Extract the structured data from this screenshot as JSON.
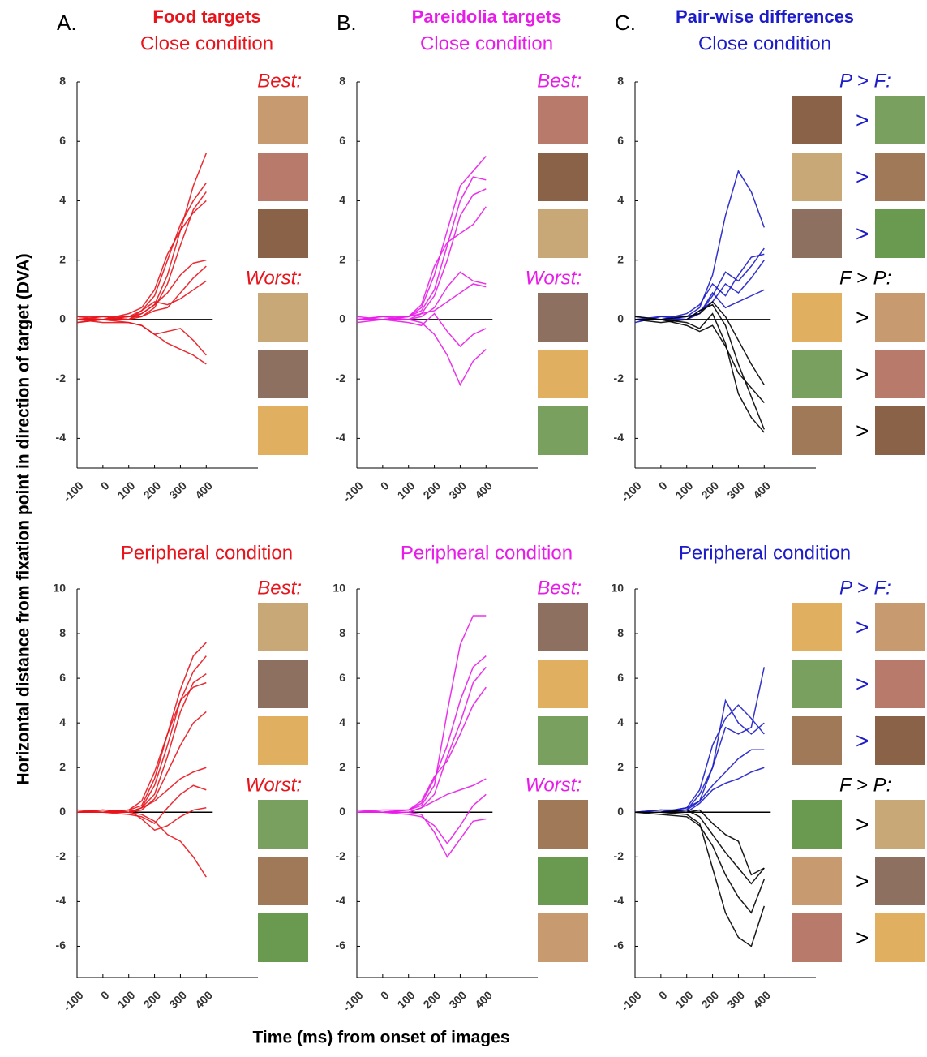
{
  "figure": {
    "y_label": "Horizontal distance from fixation point in direction of target (DVA)",
    "x_label": "Time (ms) from onset of images"
  },
  "chart_data": [
    {
      "type": "line",
      "panel_letter": "A.",
      "heading": "Food targets",
      "title": "Close condition",
      "annotations": [
        "Best:",
        "Worst:"
      ],
      "x": [
        -100,
        0,
        100,
        150,
        200,
        250,
        300,
        350,
        400
      ],
      "xlim": [
        -100,
        600
      ],
      "xticks": [
        -100,
        0,
        100,
        200,
        300,
        400
      ],
      "ylim": [
        -5,
        8
      ],
      "yticks": [
        8,
        6,
        4,
        2,
        0,
        -2,
        -4
      ],
      "color": "#e8141c",
      "series": [
        {
          "color": "#e8141c",
          "values": [
            0.1,
            0.1,
            0.1,
            0.2,
            0.5,
            1.5,
            3,
            4.5,
            5.6
          ]
        },
        {
          "color": "#e8141c",
          "values": [
            0,
            0,
            0.1,
            0.3,
            0.8,
            2,
            3.2,
            4,
            4.6
          ]
        },
        {
          "color": "#e8141c",
          "values": [
            0,
            0.1,
            0,
            0.1,
            0.4,
            1.2,
            2.5,
            3.7,
            4.3
          ]
        },
        {
          "color": "#e8141c",
          "values": [
            -0.1,
            0,
            0.2,
            0.4,
            1,
            2.2,
            3,
            3.6,
            4
          ]
        },
        {
          "color": "#e8141c",
          "values": [
            0,
            0,
            0,
            0.2,
            0.5,
            0.9,
            1.5,
            1.9,
            2
          ]
        },
        {
          "color": "#e8141c",
          "values": [
            0.1,
            0,
            0.1,
            0.1,
            0.3,
            0.4,
            0.9,
            1.4,
            1.8
          ]
        },
        {
          "color": "#e8141c",
          "values": [
            0,
            0.1,
            0,
            0.3,
            0.6,
            0.5,
            0.7,
            1,
            1.3
          ]
        },
        {
          "color": "#e8141c",
          "values": [
            0,
            -0.1,
            -0.1,
            -0.2,
            -0.5,
            -0.4,
            -0.3,
            -0.7,
            -1.2
          ]
        },
        {
          "color": "#e8141c",
          "values": [
            -0.1,
            0,
            -0.1,
            -0.2,
            -0.5,
            -0.8,
            -1,
            -1.2,
            -1.5
          ]
        }
      ]
    },
    {
      "type": "line",
      "panel_letter": "B.",
      "heading": "Pareidolia targets",
      "title": "Close condition",
      "annotations": [
        "Best:",
        "Worst:"
      ],
      "x": [
        -100,
        0,
        100,
        150,
        200,
        250,
        300,
        350,
        400
      ],
      "xlim": [
        -100,
        600
      ],
      "xticks": [
        -100,
        0,
        100,
        200,
        300,
        400
      ],
      "ylim": [
        -5,
        8
      ],
      "yticks": [
        8,
        6,
        4,
        2,
        0,
        -2,
        -4
      ],
      "color": "#e81ce8",
      "series": [
        {
          "color": "#e81ce8",
          "values": [
            0,
            0,
            0.1,
            0.4,
            1.5,
            3,
            4.5,
            5,
            5.5
          ]
        },
        {
          "color": "#e81ce8",
          "values": [
            0,
            0.1,
            0.1,
            0.3,
            1,
            2.5,
            4,
            4.8,
            4.7
          ]
        },
        {
          "color": "#e81ce8",
          "values": [
            0.1,
            0,
            0,
            0.2,
            0.8,
            2,
            3.5,
            4.2,
            4.4
          ]
        },
        {
          "color": "#e81ce8",
          "values": [
            0,
            0,
            0.1,
            0.5,
            1.8,
            2.6,
            2.9,
            3.2,
            3.8
          ]
        },
        {
          "color": "#e81ce8",
          "values": [
            0,
            0.1,
            0,
            0.1,
            0.4,
            1.1,
            1.6,
            1.3,
            1.2
          ]
        },
        {
          "color": "#e81ce8",
          "values": [
            -0.1,
            0,
            0.1,
            0.2,
            0.3,
            0.6,
            0.9,
            1.2,
            1.1
          ]
        },
        {
          "color": "#e81ce8",
          "values": [
            0,
            0,
            -0.1,
            -0.2,
            0.2,
            -0.4,
            -0.9,
            -0.5,
            -0.3
          ]
        },
        {
          "color": "#e81ce8",
          "values": [
            0,
            0,
            0,
            -0.1,
            -0.5,
            -1.2,
            -2.2,
            -1.4,
            -1.0
          ]
        }
      ]
    },
    {
      "type": "line",
      "panel_letter": "C.",
      "heading": "Pair-wise differences",
      "title": "Close condition",
      "annotations": [
        "P > F:",
        "F > P:"
      ],
      "comparison_symbol": ">",
      "x": [
        -100,
        0,
        100,
        150,
        200,
        250,
        300,
        350,
        400
      ],
      "xlim": [
        -100,
        600
      ],
      "xticks": [
        -100,
        0,
        100,
        200,
        300,
        400
      ],
      "ylim": [
        -5,
        8
      ],
      "yticks": [
        8,
        6,
        4,
        2,
        0,
        -2,
        -4
      ],
      "color": "#1c1cc8",
      "series": [
        {
          "color": "#1c1cc8",
          "values": [
            0,
            0,
            0.1,
            0.4,
            1.5,
            3.5,
            5,
            4.3,
            3.1
          ]
        },
        {
          "color": "#1c1cc8",
          "values": [
            0,
            0.1,
            0,
            0.2,
            0.8,
            1.6,
            1.3,
            1.8,
            2.4
          ]
        },
        {
          "color": "#1c1cc8",
          "values": [
            0.1,
            0,
            0.2,
            0.5,
            1.2,
            0.8,
            1.5,
            2.1,
            2.2
          ]
        },
        {
          "color": "#1c1cc8",
          "values": [
            0,
            0,
            0,
            0.3,
            0.6,
            1.2,
            0.9,
            1.4,
            2.0
          ]
        },
        {
          "color": "#1c1cc8",
          "values": [
            -0.1,
            0.1,
            0.1,
            0.2,
            0.9,
            0.4,
            0.6,
            0.8,
            1.0
          ]
        },
        {
          "color": "#000000",
          "values": [
            0,
            0,
            -0.1,
            -0.3,
            0.2,
            -0.8,
            -2.5,
            -3.3,
            -3.8
          ]
        },
        {
          "color": "#000000",
          "values": [
            0,
            -0.1,
            0,
            0.3,
            0.5,
            -0.2,
            -1.5,
            -2.6,
            -3.7
          ]
        },
        {
          "color": "#000000",
          "values": [
            0.1,
            0,
            -0.2,
            -0.4,
            -0.2,
            -0.9,
            -1.8,
            -2.3,
            -2.8
          ]
        },
        {
          "color": "#000000",
          "values": [
            0,
            0,
            0.1,
            0.2,
            0.6,
            0.1,
            -0.7,
            -1.5,
            -2.2
          ]
        }
      ]
    },
    {
      "type": "line",
      "title": "Peripheral condition",
      "annotations": [
        "Best:",
        "Worst:"
      ],
      "x": [
        -100,
        0,
        100,
        150,
        200,
        250,
        300,
        350,
        400
      ],
      "xlim": [
        -100,
        600
      ],
      "xticks": [
        -100,
        0,
        100,
        200,
        300,
        400
      ],
      "ylim": [
        -7.4,
        10
      ],
      "yticks": [
        10,
        8,
        6,
        4,
        2,
        0,
        -2,
        -4,
        -6
      ],
      "color": "#e8141c",
      "series": [
        {
          "color": "#e8141c",
          "values": [
            0,
            0,
            0.1,
            0.3,
            1.5,
            3.5,
            5.5,
            7,
            7.6
          ]
        },
        {
          "color": "#e8141c",
          "values": [
            0,
            0.1,
            0,
            0.2,
            1.2,
            3,
            5,
            6.3,
            7.0
          ]
        },
        {
          "color": "#e8141c",
          "values": [
            0.1,
            0,
            0,
            0.2,
            0.8,
            2.5,
            4.5,
            5.8,
            6.2
          ]
        },
        {
          "color": "#e8141c",
          "values": [
            0,
            0,
            0.1,
            0.5,
            1.8,
            3.5,
            5,
            5.6,
            5.8
          ]
        },
        {
          "color": "#e8141c",
          "values": [
            0,
            0,
            0,
            0.1,
            0.6,
            1.8,
            3,
            4,
            4.5
          ]
        },
        {
          "color": "#e8141c",
          "values": [
            0,
            0.1,
            0,
            0.2,
            0.5,
            1,
            1.5,
            1.8,
            2.0
          ]
        },
        {
          "color": "#e8141c",
          "values": [
            0,
            0,
            -0.1,
            -0.2,
            -0.5,
            0.2,
            0.8,
            1.2,
            1.0
          ]
        },
        {
          "color": "#e8141c",
          "values": [
            0,
            0,
            0.1,
            -0.3,
            -0.8,
            -0.6,
            -0.2,
            0.1,
            0.2
          ]
        },
        {
          "color": "#e8141c",
          "values": [
            0,
            0,
            0,
            -0.1,
            -0.4,
            -1,
            -1.3,
            -2,
            -2.9
          ]
        }
      ]
    },
    {
      "type": "line",
      "title": "Peripheral condition",
      "annotations": [
        "Best:",
        "Worst:"
      ],
      "x": [
        -100,
        0,
        100,
        150,
        200,
        250,
        300,
        350,
        400
      ],
      "xlim": [
        -100,
        600
      ],
      "xticks": [
        -100,
        0,
        100,
        200,
        300,
        400
      ],
      "ylim": [
        -7.4,
        10
      ],
      "yticks": [
        10,
        8,
        6,
        4,
        2,
        0,
        -2,
        -4,
        -6
      ],
      "color": "#e81ce8",
      "series": [
        {
          "color": "#e81ce8",
          "values": [
            0,
            0,
            0.1,
            0.3,
            1.2,
            4.5,
            7.5,
            8.8,
            8.8
          ]
        },
        {
          "color": "#e81ce8",
          "values": [
            0,
            0.1,
            0.1,
            0.4,
            1.5,
            3,
            5,
            6.5,
            7.0
          ]
        },
        {
          "color": "#e81ce8",
          "values": [
            0,
            0,
            0,
            0.2,
            0.8,
            2.5,
            4,
            5.8,
            6.5
          ]
        },
        {
          "color": "#e81ce8",
          "values": [
            0.1,
            0,
            0.1,
            0.5,
            1.6,
            2.3,
            3.5,
            4.8,
            5.6
          ]
        },
        {
          "color": "#e81ce8",
          "values": [
            0,
            0,
            0,
            0.2,
            0.5,
            0.8,
            1,
            1.2,
            1.5
          ]
        },
        {
          "color": "#e81ce8",
          "values": [
            0,
            0,
            -0.1,
            -0.2,
            -0.6,
            -1.4,
            -0.6,
            0.3,
            0.8
          ]
        },
        {
          "color": "#e81ce8",
          "values": [
            0,
            0,
            0,
            -0.1,
            -0.9,
            -2,
            -1.2,
            -0.4,
            -0.3
          ]
        }
      ]
    },
    {
      "type": "line",
      "title": "Peripheral condition",
      "annotations": [
        "P > F:",
        "F > P:"
      ],
      "comparison_symbol": ">",
      "x": [
        -100,
        0,
        100,
        150,
        200,
        250,
        300,
        350,
        400
      ],
      "xlim": [
        -100,
        600
      ],
      "xticks": [
        -100,
        0,
        100,
        200,
        300,
        400
      ],
      "ylim": [
        -7.4,
        10
      ],
      "yticks": [
        10,
        8,
        6,
        4,
        2,
        0,
        -2,
        -4,
        -6
      ],
      "color": "#1c1cc8",
      "series": [
        {
          "color": "#1c1cc8",
          "values": [
            0,
            0,
            0.2,
            0.5,
            2,
            3.8,
            3.5,
            3.8,
            6.5
          ]
        },
        {
          "color": "#1c1cc8",
          "values": [
            0,
            0.1,
            0.1,
            0.8,
            2,
            5,
            4,
            3.5,
            4
          ]
        },
        {
          "color": "#1c1cc8",
          "values": [
            0,
            0,
            0.2,
            1,
            3,
            4.2,
            4.8,
            4.2,
            3.5
          ]
        },
        {
          "color": "#1c1cc8",
          "values": [
            0,
            0,
            0.1,
            0.5,
            1.2,
            1.8,
            2.4,
            2.8,
            2.8
          ]
        },
        {
          "color": "#1c1cc8",
          "values": [
            0,
            0.1,
            0,
            0.4,
            1,
            1.3,
            1.5,
            1.8,
            2
          ]
        },
        {
          "color": "#000000",
          "values": [
            0,
            0,
            -0.1,
            -0.5,
            -2.5,
            -4.5,
            -5.6,
            -6,
            -4.2
          ]
        },
        {
          "color": "#000000",
          "values": [
            0,
            -0.1,
            -0.2,
            -0.6,
            -1.5,
            -2.8,
            -3.8,
            -4.5,
            -3.0
          ]
        },
        {
          "color": "#000000",
          "values": [
            0,
            0,
            0.1,
            -0.2,
            -1,
            -1.8,
            -2.5,
            -3.2,
            -2.5
          ]
        },
        {
          "color": "#000000",
          "values": [
            0,
            0,
            0,
            0.1,
            -0.5,
            -1,
            -1.3,
            -2.8,
            -2.5
          ]
        }
      ]
    }
  ]
}
